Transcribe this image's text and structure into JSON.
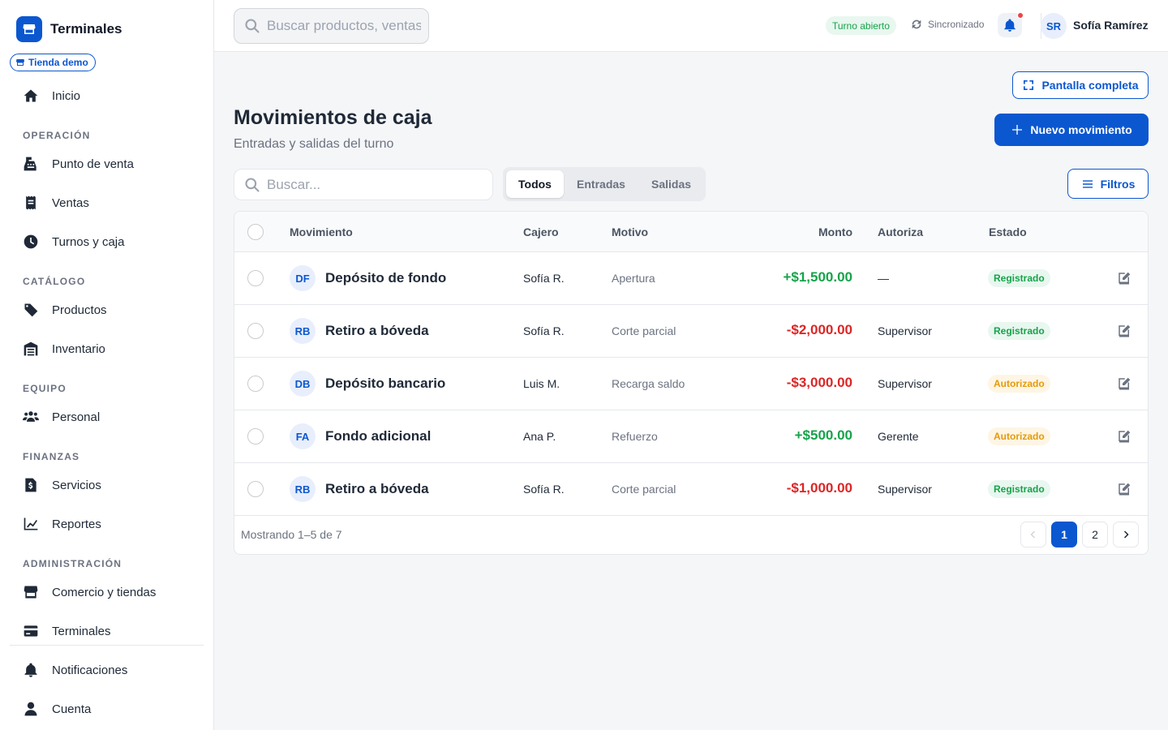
{
  "app": {
    "name": "Terminales",
    "store": "Tienda demo"
  },
  "sidebar": {
    "items_top": [
      {
        "label": "Inicio",
        "icon": "home-icon"
      }
    ],
    "sections": [
      {
        "title": "OPERACIÓN",
        "items": [
          {
            "label": "Punto de venta",
            "icon": "cash-register-icon"
          },
          {
            "label": "Ventas",
            "icon": "receipt-icon"
          },
          {
            "label": "Turnos y caja",
            "icon": "clock-icon"
          }
        ]
      },
      {
        "title": "CATÁLOGO",
        "items": [
          {
            "label": "Productos",
            "icon": "tag-icon"
          },
          {
            "label": "Inventario",
            "icon": "warehouse-icon"
          }
        ]
      },
      {
        "title": "EQUIPO",
        "items": [
          {
            "label": "Personal",
            "icon": "users-icon"
          }
        ]
      },
      {
        "title": "FINANZAS",
        "items": [
          {
            "label": "Servicios",
            "icon": "invoice-dollar-icon"
          },
          {
            "label": "Reportes",
            "icon": "chart-line-icon"
          }
        ]
      },
      {
        "title": "ADMINISTRACIÓN",
        "items": [
          {
            "label": "Comercio y tiendas",
            "icon": "store-icon"
          },
          {
            "label": "Terminales",
            "icon": "credit-card-icon"
          }
        ]
      }
    ],
    "items_bottom": [
      {
        "label": "Notificaciones",
        "icon": "bell-icon"
      },
      {
        "label": "Cuenta",
        "icon": "user-icon"
      }
    ]
  },
  "topbar": {
    "search_placeholder": "Buscar productos, ventas...",
    "shift_status": "Turno abierto",
    "sync_status": "Sincronizado",
    "user_initials": "SR",
    "user_name": "Sofía Ramírez"
  },
  "page": {
    "fullscreen_label": "Pantalla completa",
    "title": "Movimientos de caja",
    "subtitle": "Entradas y salidas del turno",
    "new_button": "Nuevo movimiento",
    "search_placeholder": "Buscar...",
    "tabs": [
      {
        "label": "Todos",
        "active": true
      },
      {
        "label": "Entradas",
        "active": false
      },
      {
        "label": "Salidas",
        "active": false
      }
    ],
    "filters_label": "Filtros"
  },
  "table": {
    "columns": [
      "Movimiento",
      "Cajero",
      "Motivo",
      "Monto",
      "Autoriza",
      "Estado"
    ],
    "rows": [
      {
        "initials": "DF",
        "name": "Depósito de fondo",
        "cashier": "Sofía R.",
        "reason": "Apertura",
        "amount": "+$1,500.00",
        "sign": "pos",
        "authorizer": "—",
        "status": "Registrado",
        "status_type": "reg"
      },
      {
        "initials": "RB",
        "name": "Retiro a bóveda",
        "cashier": "Sofía R.",
        "reason": "Corte parcial",
        "amount": "-$2,000.00",
        "sign": "neg",
        "authorizer": "Supervisor",
        "status": "Registrado",
        "status_type": "reg"
      },
      {
        "initials": "DB",
        "name": "Depósito bancario",
        "cashier": "Luis M.",
        "reason": "Recarga saldo",
        "amount": "-$3,000.00",
        "sign": "neg",
        "authorizer": "Supervisor",
        "status": "Autorizado",
        "status_type": "aut"
      },
      {
        "initials": "FA",
        "name": "Fondo adicional",
        "cashier": "Ana P.",
        "reason": "Refuerzo",
        "amount": "+$500.00",
        "sign": "pos",
        "authorizer": "Gerente",
        "status": "Autorizado",
        "status_type": "aut"
      },
      {
        "initials": "RB",
        "name": "Retiro a bóveda",
        "cashier": "Sofía R.",
        "reason": "Corte parcial",
        "amount": "-$1,000.00",
        "sign": "neg",
        "authorizer": "Supervisor",
        "status": "Registrado",
        "status_type": "reg"
      }
    ],
    "footer_text": "Mostrando 1–5 de 7",
    "pages": [
      "1",
      "2"
    ],
    "current_page": "1"
  },
  "colors": {
    "primary": "#0b57d0",
    "positive": "#16a34a",
    "negative": "#dc2626",
    "warning": "#e39b0b"
  }
}
